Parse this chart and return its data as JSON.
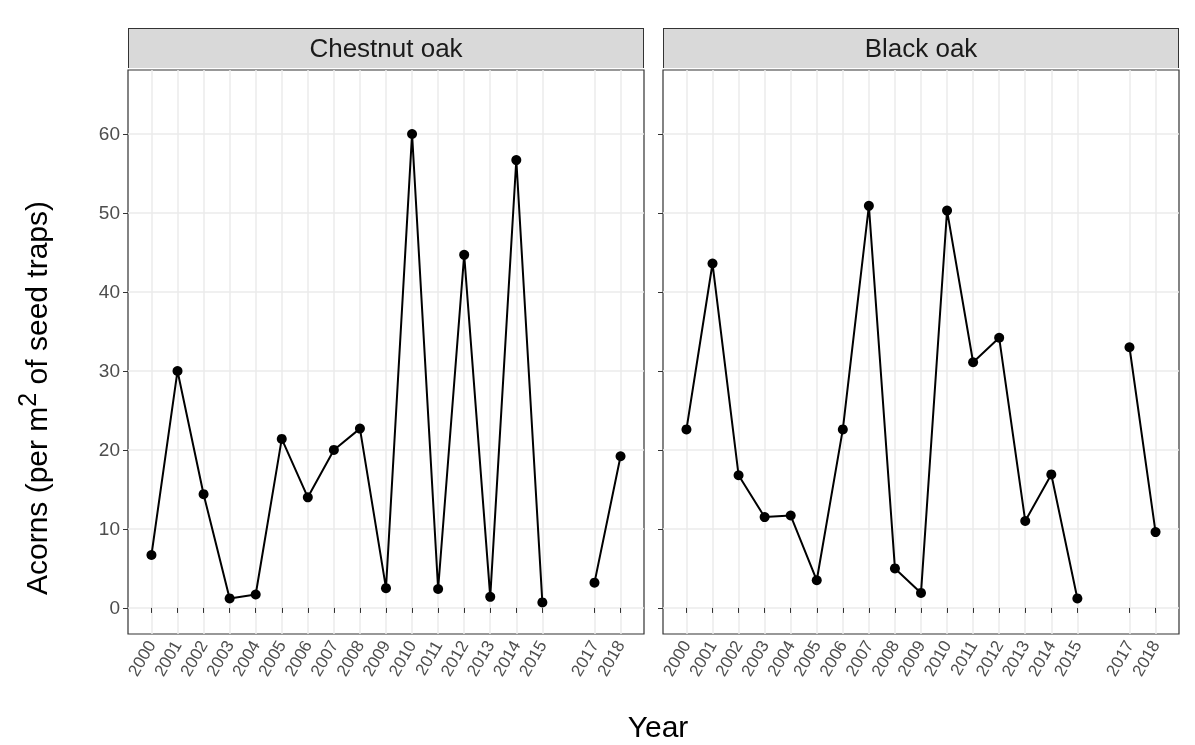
{
  "chart_data": [
    {
      "type": "line",
      "title": "Chestnut oak",
      "ylabel": "Acorns (per m$^{2}$ of seed traps)",
      "xlabel": "Year",
      "x": [
        2000,
        2001,
        2002,
        2003,
        2004,
        2005,
        2006,
        2007,
        2008,
        2009,
        2010,
        2011,
        2012,
        2013,
        2014,
        2015,
        2016,
        2017,
        2018
      ],
      "series": [
        {
          "color": "#000000",
          "values": [
            6.7,
            30,
            14.4,
            1.2,
            1.7,
            21.4,
            14,
            20,
            22.7,
            2.5,
            60,
            2.4,
            44.7,
            1.4,
            56.7,
            0.7,
            null,
            3.2,
            19.2
          ]
        }
      ],
      "xlim": [
        1999.1,
        2018.9
      ],
      "xticks": [
        2000,
        2001,
        2002,
        2003,
        2004,
        2005,
        2006,
        2007,
        2008,
        2009,
        2010,
        2011,
        2012,
        2013,
        2014,
        2015,
        2017,
        2018
      ],
      "ylim": [
        -3.3,
        68.1
      ],
      "yticks": [
        0,
        10,
        20,
        30,
        40,
        50,
        60
      ],
      "grid": true,
      "marker": "circle",
      "line_style": "solid"
    },
    {
      "type": "line",
      "title": "Black oak",
      "x": [
        2000,
        2001,
        2002,
        2003,
        2004,
        2005,
        2006,
        2007,
        2008,
        2009,
        2010,
        2011,
        2012,
        2013,
        2014,
        2015,
        2016,
        2017,
        2018
      ],
      "series": [
        {
          "color": "#000000",
          "values": [
            22.6,
            43.6,
            16.8,
            11.5,
            11.7,
            3.5,
            22.6,
            50.9,
            5.0,
            1.9,
            50.3,
            31.1,
            34.2,
            11.0,
            16.9,
            1.2,
            null,
            33.0,
            9.6
          ]
        }
      ],
      "xlim": [
        1999.1,
        2018.9
      ],
      "xticks": [
        2000,
        2001,
        2002,
        2003,
        2004,
        2005,
        2006,
        2007,
        2008,
        2009,
        2010,
        2011,
        2012,
        2013,
        2014,
        2015,
        2017,
        2018
      ],
      "ylim": [
        -3.3,
        68.1
      ],
      "yticks": [
        0,
        10,
        20,
        30,
        40,
        50,
        60
      ],
      "grid": true,
      "marker": "circle",
      "line_style": "solid",
      "tick_labels": "x"
    }
  ]
}
